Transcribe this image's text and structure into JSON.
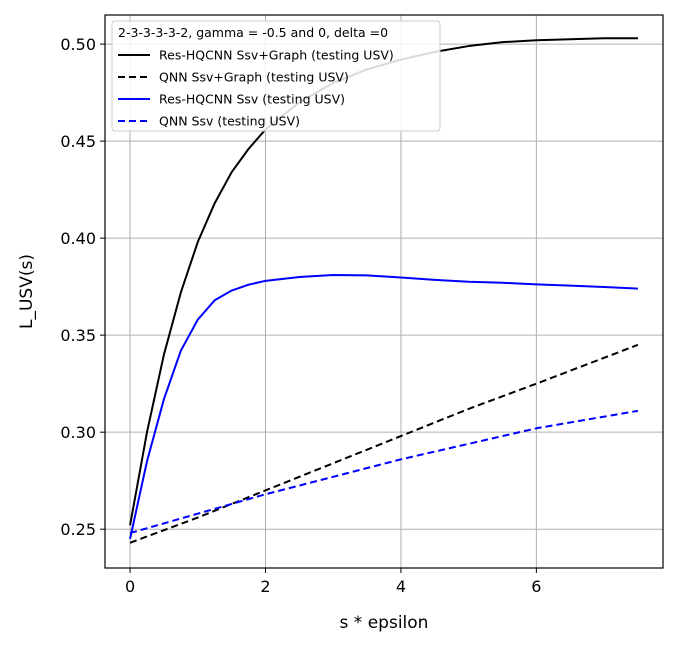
{
  "chart_data": {
    "type": "line",
    "legend_title": "2-3-3-3-3-2, gamma = -0.5 and 0, delta =0",
    "legend_placement": "top-left",
    "xlabel": "s * epsilon",
    "ylabel": "L_USV(s)",
    "xlim": [
      -0.37,
      7.87
    ],
    "ylim": [
      0.23,
      0.515
    ],
    "grid": true,
    "x_ticks": [
      0,
      2,
      4,
      6
    ],
    "x_tick_labels": [
      "0",
      "2",
      "4",
      "6"
    ],
    "y_ticks": [
      0.25,
      0.3,
      0.35,
      0.4,
      0.45,
      0.5
    ],
    "y_tick_labels": [
      "0.25",
      "0.30",
      "0.35",
      "0.40",
      "0.45",
      "0.50"
    ],
    "series": [
      {
        "name": "Res-HQCNN Ssv+Graph (testing USV)",
        "color": "#000000",
        "dash": "solid",
        "x": [
          0,
          0.25,
          0.5,
          0.75,
          1.0,
          1.25,
          1.5,
          1.75,
          2.0,
          2.5,
          3.0,
          3.5,
          4.0,
          4.5,
          5.0,
          5.5,
          6.0,
          6.5,
          7.0,
          7.5
        ],
        "y": [
          0.252,
          0.3,
          0.34,
          0.372,
          0.398,
          0.418,
          0.434,
          0.446,
          0.456,
          0.47,
          0.48,
          0.487,
          0.492,
          0.496,
          0.499,
          0.501,
          0.502,
          0.5025,
          0.503,
          0.503
        ]
      },
      {
        "name": "QNN Ssv+Graph (testing USV)",
        "color": "#000000",
        "dash": "dashed",
        "x": [
          0,
          1.0,
          2.0,
          3.0,
          4.0,
          5.0,
          6.0,
          7.5
        ],
        "y": [
          0.243,
          0.256,
          0.27,
          0.284,
          0.298,
          0.312,
          0.325,
          0.345
        ]
      },
      {
        "name": "Res-HQCNN Ssv (testing USV)",
        "color": "#0000ff",
        "dash": "solid",
        "x": [
          0,
          0.25,
          0.5,
          0.75,
          1.0,
          1.25,
          1.5,
          1.75,
          2.0,
          2.5,
          3.0,
          3.5,
          4.0,
          4.5,
          5.0,
          5.5,
          6.0,
          6.5,
          7.0,
          7.5
        ],
        "y": [
          0.245,
          0.285,
          0.317,
          0.342,
          0.358,
          0.368,
          0.373,
          0.376,
          0.378,
          0.38,
          0.381,
          0.3808,
          0.3797,
          0.3785,
          0.3775,
          0.377,
          0.3762,
          0.3755,
          0.3748,
          0.374
        ]
      },
      {
        "name": "QNN Ssv (testing USV)",
        "color": "#0000ff",
        "dash": "dashed",
        "x": [
          0,
          1.0,
          2.0,
          3.0,
          4.0,
          5.0,
          6.0,
          7.5
        ],
        "y": [
          0.248,
          0.258,
          0.268,
          0.277,
          0.286,
          0.294,
          0.302,
          0.311
        ]
      }
    ]
  }
}
